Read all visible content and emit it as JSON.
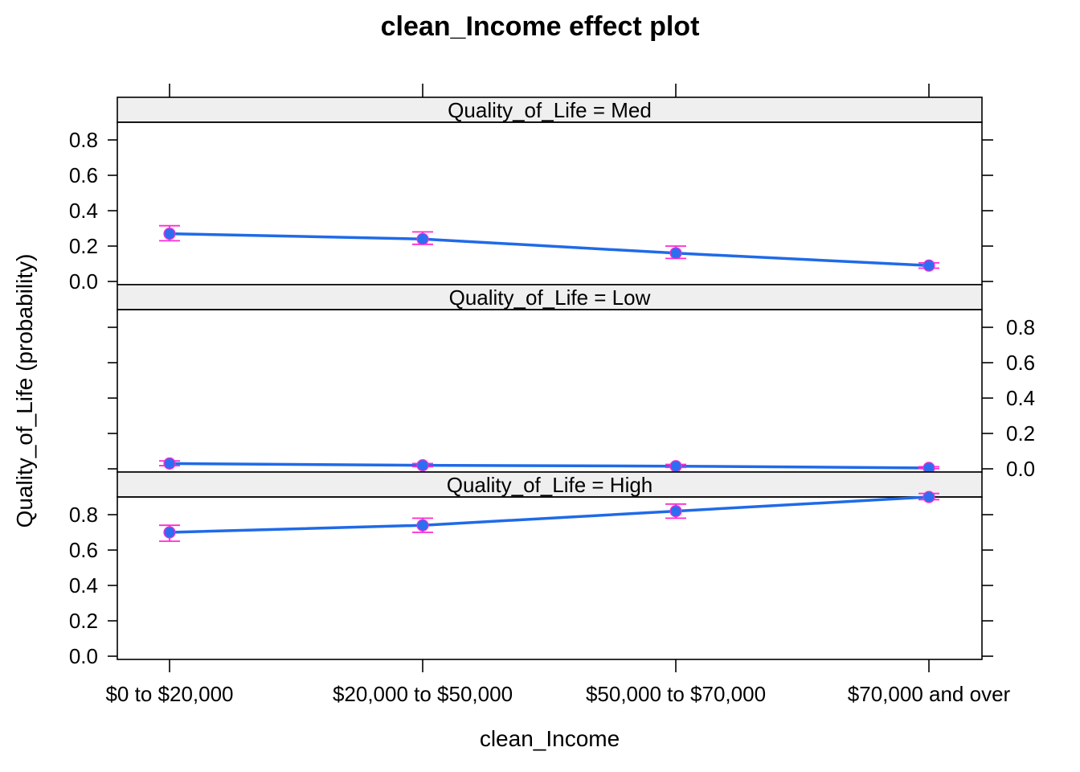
{
  "chart_data": {
    "type": "line",
    "title": "clean_Income effect plot",
    "xlabel": "clean_Income",
    "ylabel": "Quality_of_Life (probability)",
    "categories": [
      "$0 to $20,000",
      "$20,000 to $50,000",
      "$50,000 to $70,000",
      "$70,000 and over"
    ],
    "ylim": [
      0,
      0.9
    ],
    "yticks": [
      "0.0",
      "0.2",
      "0.4",
      "0.6",
      "0.8"
    ],
    "panels": [
      {
        "strip": "Quality_of_Life = Med",
        "values": [
          0.27,
          0.24,
          0.16,
          0.09
        ],
        "lower": [
          0.23,
          0.21,
          0.13,
          0.075
        ],
        "upper": [
          0.315,
          0.28,
          0.2,
          0.105
        ]
      },
      {
        "strip": "Quality_of_Life = Low",
        "values": [
          0.03,
          0.02,
          0.015,
          0.005
        ],
        "lower": [
          0.018,
          0.012,
          0.008,
          0.001
        ],
        "upper": [
          0.045,
          0.03,
          0.025,
          0.012
        ]
      },
      {
        "strip": "Quality_of_Life = High",
        "values": [
          0.7,
          0.74,
          0.82,
          0.9
        ],
        "lower": [
          0.65,
          0.7,
          0.78,
          0.885
        ],
        "upper": [
          0.74,
          0.78,
          0.86,
          0.92
        ]
      }
    ],
    "colors": {
      "line": "#1f6ae8",
      "point": "#2d6ef0",
      "errorbar": "#ff2ad4",
      "strip_bg": "#efefef"
    },
    "grid": false
  }
}
